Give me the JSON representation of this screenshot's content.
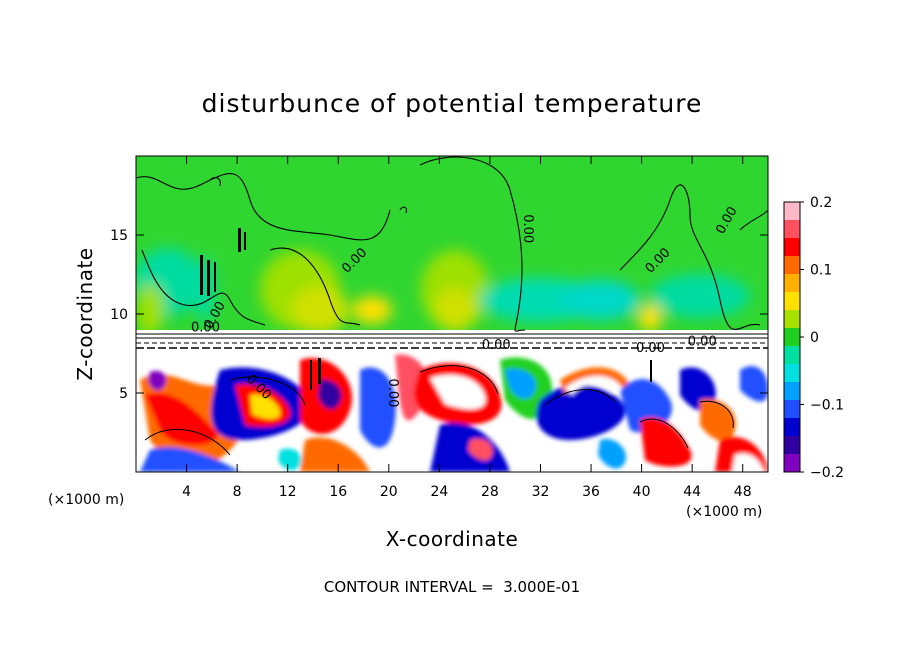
{
  "chart_data": {
    "type": "heatmap",
    "title": "disturbunce of potential temperature",
    "xlabel": "X-coordinate",
    "ylabel": "Z-coordinate",
    "x_unit": "(×1000 m)",
    "y_unit": "(×1000 m)",
    "xlim": [
      0,
      50
    ],
    "ylim": [
      0,
      20
    ],
    "x_ticks": [
      4,
      8,
      12,
      16,
      20,
      24,
      28,
      32,
      36,
      40,
      44,
      48
    ],
    "x_tick_labels": [
      "4",
      "8",
      "12",
      "16",
      "20",
      "24",
      "28",
      "32",
      "36",
      "40",
      "44",
      "48"
    ],
    "y_ticks": [
      5,
      10,
      15
    ],
    "y_tick_labels": [
      "5",
      "10",
      "15"
    ],
    "colorbar": {
      "range": [
        -0.2,
        0.2
      ],
      "ticks": [
        0.2,
        0.1,
        0,
        -0.1,
        -0.2
      ],
      "tick_labels": [
        "0.2",
        "0.1",
        "0",
        "−0.1",
        "−0.2"
      ],
      "colors": [
        "#ffb8c8",
        "#ff5060",
        "#ff0000",
        "#ff6a00",
        "#ffb000",
        "#ffe000",
        "#a8e000",
        "#20d020",
        "#00e0a0",
        "#00e0e0",
        "#00a0ff",
        "#2050ff",
        "#0000d0",
        "#3000a0",
        "#8000c0"
      ]
    },
    "contour_labels": [
      "0.00",
      "0.00",
      "0.00",
      "0.00",
      "0.00",
      "0.00",
      "0.00",
      "0.00",
      "0.00",
      "0.00",
      "0.00"
    ],
    "footer": "CONTOUR INTERVAL =  3.000E-01"
  }
}
